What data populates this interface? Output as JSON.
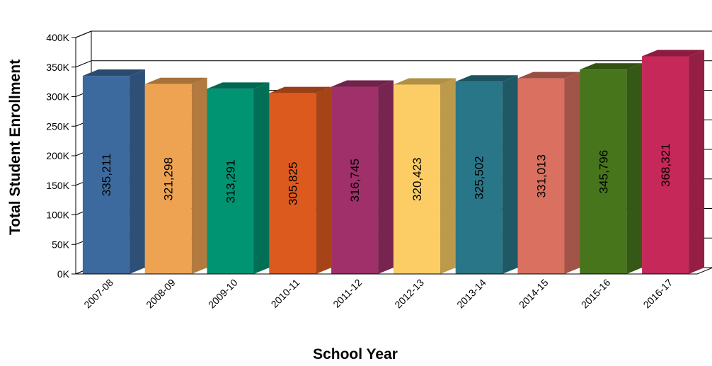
{
  "chart_data": {
    "type": "bar",
    "categories": [
      "2007-08",
      "2008-09",
      "2009-10",
      "2010-11",
      "2011-12",
      "2012-13",
      "2013-14",
      "2014-15",
      "2015-16",
      "2016-17"
    ],
    "values": [
      335211,
      321298,
      313291,
      305825,
      316745,
      320423,
      325502,
      331013,
      345796,
      368321
    ],
    "value_labels": [
      "335,211",
      "321,298",
      "313,291",
      "305,825",
      "316,745",
      "320,423",
      "325,502",
      "331,013",
      "345,796",
      "368,321"
    ],
    "colors": [
      "#3d6a9e",
      "#eda352",
      "#009473",
      "#dd5a1f",
      "#a0306a",
      "#fbcd64",
      "#297688",
      "#d97060",
      "#47751b",
      "#c6285a"
    ],
    "xlabel": "School Year",
    "ylabel": "Total Student Enrollment",
    "ylim": [
      0,
      400000
    ],
    "y_ticks": [
      0,
      50000,
      100000,
      150000,
      200000,
      250000,
      300000,
      350000,
      400000
    ],
    "y_tick_labels": [
      "0K",
      "50K",
      "100K",
      "150K",
      "200K",
      "250K",
      "300K",
      "350K",
      "400K"
    ],
    "grid": true,
    "three_d": true
  }
}
